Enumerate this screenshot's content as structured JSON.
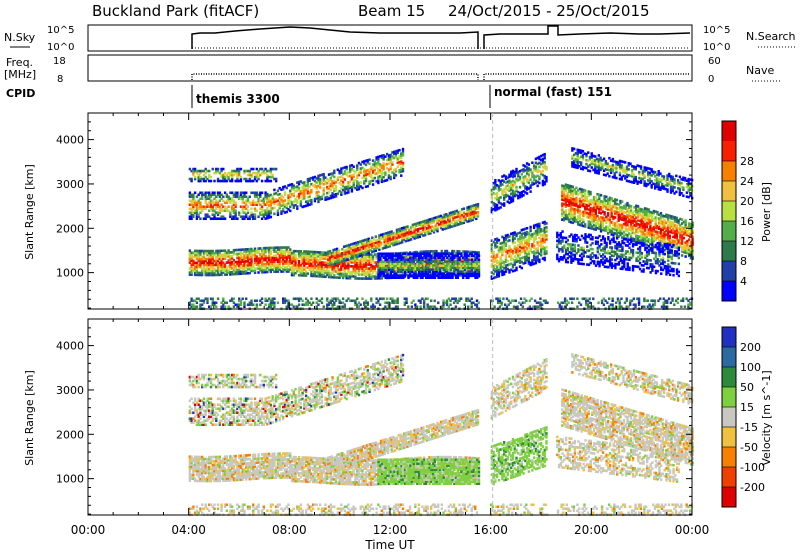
{
  "header": {
    "station": "Buckland Park (fitACF)",
    "beam": "Beam 15",
    "date_range": "24/Oct/2015 - 25/Oct/2015"
  },
  "aux_panels": {
    "nsky_label": "N.Sky",
    "nsky_ticks": [
      "10^5",
      "10^0"
    ],
    "nsearch_label": "N.Search",
    "nsearch_ticks": [
      "10^5",
      "10^0"
    ],
    "freq_label": "Freq.",
    "freq_unit": "[MHz]",
    "freq_ticks": [
      "18",
      "8"
    ],
    "nave_label": "Nave",
    "nave_ticks": [
      "60",
      "0"
    ],
    "cpid_label": "CPID",
    "cpid_segments": [
      {
        "name": "themis 3300",
        "start_hour": 4.0
      },
      {
        "name": "normal (fast) 151",
        "start_hour": 16.0
      }
    ]
  },
  "chart_data": [
    {
      "type": "heatmap",
      "title": "",
      "xlabel": "Time UT",
      "ylabel": "Slant Range [km]",
      "x_ticks": [
        "00:00",
        "04:00",
        "08:00",
        "12:00",
        "16:00",
        "20:00",
        "00:00"
      ],
      "x_range_hours": [
        0,
        24
      ],
      "y_ticks": [
        1000,
        2000,
        3000,
        4000
      ],
      "ylim": [
        180,
        4600
      ],
      "colorbar": {
        "label": "Power [dB]",
        "ticks": [
          "4",
          "8",
          "12",
          "16",
          "20",
          "24",
          "28"
        ],
        "colors": [
          "#0000ff",
          "#2040a8",
          "#2e7a4a",
          "#52ad4a",
          "#b8e040",
          "#f0c040",
          "#f88000",
          "#f82000",
          "#e00000"
        ]
      },
      "echo_bands": [
        {
          "name": "E/low-range echoes",
          "t_start": 4.0,
          "t_end": 24.0,
          "range_km": [
            200,
            450
          ]
        },
        {
          "name": "night F-region band 1",
          "t_start": 4.0,
          "t_end": 15.5,
          "range_km": [
            1000,
            1500
          ]
        },
        {
          "name": "night F-region band 2",
          "t_start": 4.0,
          "t_end": 12.5,
          "range_km": [
            2200,
            3300
          ]
        },
        {
          "name": "morning rising band",
          "t_start": 10.0,
          "t_end": 15.5,
          "range_km": [
            1800,
            2500
          ]
        },
        {
          "name": "evening band",
          "t_start": 18.5,
          "t_end": 24.0,
          "range_km": [
            1100,
            3500
          ]
        }
      ]
    },
    {
      "type": "heatmap",
      "title": "",
      "xlabel": "Time UT",
      "ylabel": "Slant Range [km]",
      "x_ticks": [
        "00:00",
        "04:00",
        "08:00",
        "12:00",
        "16:00",
        "20:00",
        "00:00"
      ],
      "x_range_hours": [
        0,
        24
      ],
      "y_ticks": [
        1000,
        2000,
        3000,
        4000
      ],
      "ylim": [
        180,
        4600
      ],
      "colorbar": {
        "label": "Velocity [m s^-1]",
        "ticks": [
          "200",
          "100",
          "50",
          "15",
          "-15",
          "-50",
          "-100",
          "-200"
        ],
        "colors": [
          "#2030c0",
          "#2a6aa0",
          "#2e8a3a",
          "#7ed040",
          "#c8c8c0",
          "#f0c040",
          "#f88000",
          "#f04000",
          "#e00000"
        ]
      }
    }
  ]
}
